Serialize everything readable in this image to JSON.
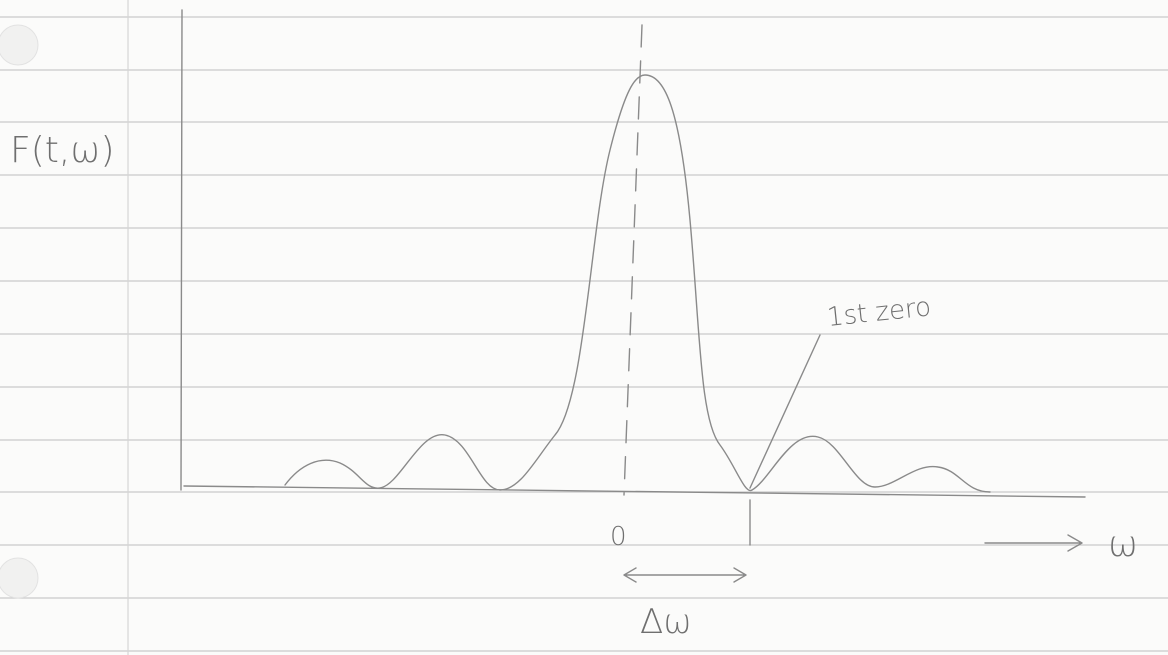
{
  "labels": {
    "y_axis": "F(t,ω)",
    "annotation": "1st zero",
    "origin": "0",
    "x_axis": "ω",
    "width": "Δω"
  }
}
